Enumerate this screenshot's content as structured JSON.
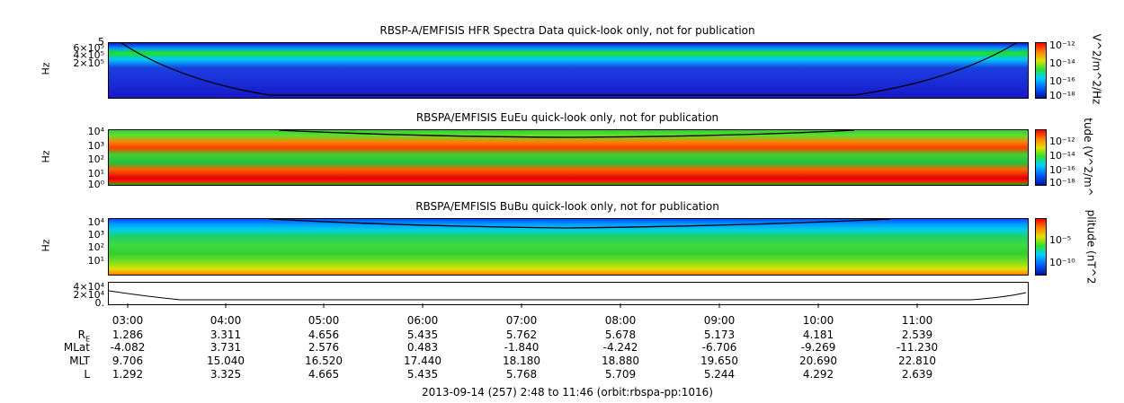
{
  "panels": [
    {
      "title": "RBSP-A/EMFISIS  HFR Spectra Data quick-look only, not for publication",
      "ylabel": "Hz",
      "yticks": [
        "6×10⁵",
        "4×10⁵",
        "2×10⁵"
      ],
      "top_tick": "5",
      "cbar_label": "V^2/m^2/Hz",
      "cbar_ticks": [
        "10⁻¹²",
        "10⁻¹⁴",
        "10⁻¹⁶",
        "10⁻¹⁸"
      ],
      "colors": {
        "bg": "#1818c8",
        "band": "#00b0ff",
        "hot": "#20e020"
      }
    },
    {
      "title": "RBSPA/EMFISIS  EuEu quick-look only, not for publication",
      "ylabel": "Hz",
      "yticks": [
        "10⁴",
        "10³",
        "10²",
        "10¹",
        "10⁰"
      ],
      "cbar_label": "tude (V^2/m^",
      "cbar_ticks": [
        "10⁻¹²",
        "10⁻¹⁴",
        "10⁻¹⁶",
        "10⁻¹⁸"
      ],
      "colors": {
        "bg": "#30d030",
        "band": "#ff3000",
        "hot": "#ff8000"
      }
    },
    {
      "title": "RBSPA/EMFISIS  BuBu quick-look only, not for publication",
      "ylabel": "Hz",
      "yticks": [
        "10⁴",
        "10³",
        "10²",
        "10¹"
      ],
      "cbar_label": "plitude (nT^2",
      "cbar_ticks": [
        "10⁻⁵",
        "10⁻¹⁰"
      ],
      "colors": {
        "bg": "#40d860",
        "band": "#00b0ff",
        "hot": "#e0e000"
      }
    }
  ],
  "line_panel": {
    "yticks": [
      "4×10⁴",
      "2×10⁴",
      "0."
    ]
  },
  "time_ticks": [
    "03:00",
    "04:00",
    "05:00",
    "06:00",
    "07:00",
    "08:00",
    "09:00",
    "10:00",
    "11:00"
  ],
  "ephemeris": [
    {
      "label": "R",
      "sub": "E",
      "values": [
        "1.286",
        "3.311",
        "4.656",
        "5.435",
        "5.762",
        "5.678",
        "5.173",
        "4.181",
        "2.539"
      ]
    },
    {
      "label": "MLat",
      "values": [
        "-4.082",
        "3.731",
        "2.576",
        "0.483",
        "-1.840",
        "-4.242",
        "-6.706",
        "-9.269",
        "-11.230"
      ]
    },
    {
      "label": "MLT",
      "values": [
        "9.706",
        "15.040",
        "16.520",
        "17.440",
        "18.180",
        "18.880",
        "19.650",
        "20.690",
        "22.810"
      ]
    },
    {
      "label": "L",
      "values": [
        "1.292",
        "3.325",
        "4.665",
        "5.435",
        "5.768",
        "5.709",
        "5.244",
        "4.292",
        "2.639"
      ]
    }
  ],
  "footer": "2013-09-14 (257) 2:48 to 11:46 (orbit:rbspa-pp:1016)"
}
